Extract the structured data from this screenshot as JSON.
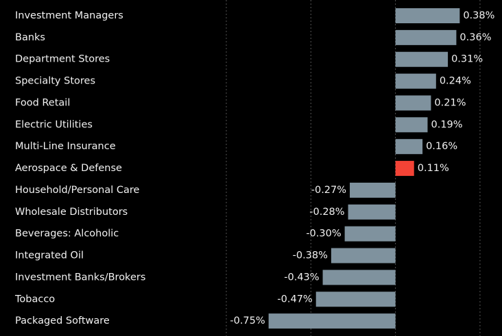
{
  "chart_data": {
    "type": "hbar",
    "categories": [
      "Investment Managers",
      "Banks",
      "Department Stores",
      "Specialty Stores",
      "Food Retail",
      "Electric Utilities",
      "Multi-Line Insurance",
      "Aerospace & Defense",
      "Household/Personal Care",
      "Wholesale Distributors",
      "Beverages: Alcoholic",
      "Integrated Oil",
      "Investment Banks/Brokers",
      "Tobacco",
      "Packaged Software"
    ],
    "values": [
      0.38,
      0.36,
      0.31,
      0.24,
      0.21,
      0.19,
      0.16,
      0.11,
      -0.27,
      -0.28,
      -0.3,
      -0.38,
      -0.43,
      -0.47,
      -0.75
    ],
    "value_labels": [
      "0.38%",
      "0.36%",
      "0.31%",
      "0.24%",
      "0.21%",
      "0.19%",
      "0.16%",
      "0.11%",
      "-0.27%",
      "-0.28%",
      "-0.30%",
      "-0.38%",
      "-0.43%",
      "-0.47%",
      "-0.75%"
    ],
    "colors": [
      "#7f929e",
      "#7f929e",
      "#7f929e",
      "#7f929e",
      "#7f929e",
      "#7f929e",
      "#7f929e",
      "#f44336",
      "#7f929e",
      "#7f929e",
      "#7f929e",
      "#7f929e",
      "#7f929e",
      "#7f929e",
      "#7f929e"
    ],
    "xlim": [
      -1.0,
      0.63
    ],
    "xticks": [
      -1.0,
      -0.5,
      0,
      0.5
    ],
    "grid": true
  }
}
